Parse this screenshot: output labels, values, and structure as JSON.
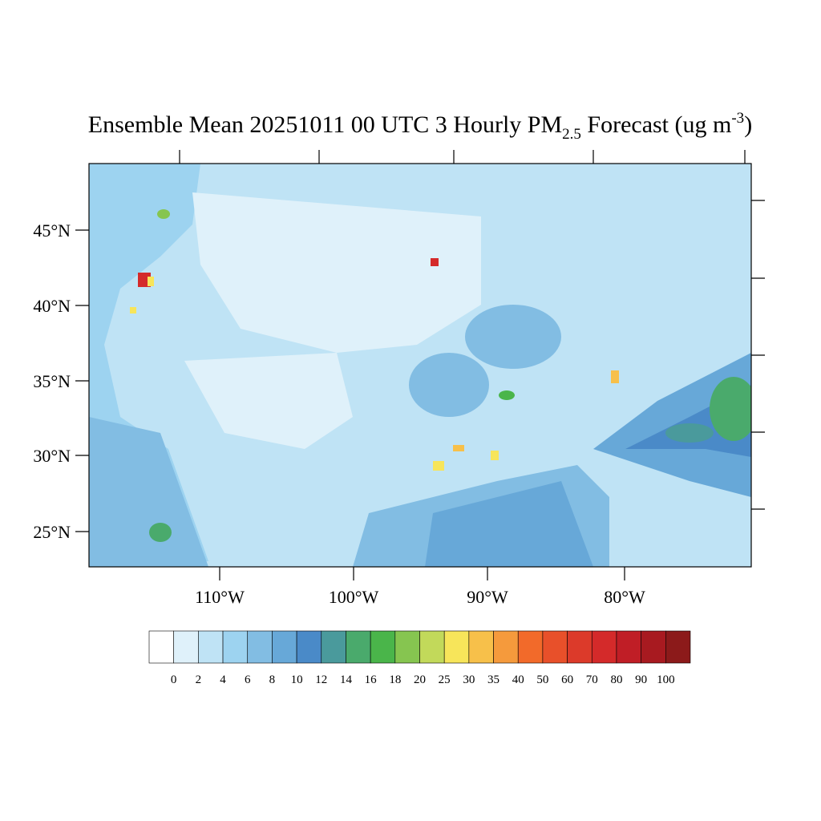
{
  "title": {
    "prefix": "Ensemble Mean 20251011 00 UTC 3 Hourly PM",
    "subscript": "2.5",
    "middle": " Forecast (ug m",
    "superscript": "-3",
    "suffix": ")"
  },
  "map": {
    "lat_labels": [
      "45°N",
      "40°N",
      "35°N",
      "30°N",
      "25°N"
    ],
    "lon_labels": [
      "110°W",
      "100°W",
      "90°W",
      "80°W"
    ]
  },
  "colorbar": {
    "labels": [
      0,
      2,
      4,
      6,
      8,
      10,
      12,
      14,
      16,
      18,
      20,
      25,
      30,
      35,
      40,
      50,
      60,
      70,
      80,
      90,
      100
    ],
    "colors": [
      "#ffffff",
      "#dff1fa",
      "#bfe3f5",
      "#9dd3f0",
      "#82bde3",
      "#67a8d8",
      "#4a8ac8",
      "#4a9a9c",
      "#4aaa6c",
      "#4ab54a",
      "#86c550",
      "#c2d95a",
      "#f7e55a",
      "#f7c04a",
      "#f59a3c",
      "#f26a2a",
      "#e8502a",
      "#dc3a2a",
      "#d42a2a",
      "#c01e26",
      "#a81a20",
      "#8c1a1a"
    ]
  }
}
